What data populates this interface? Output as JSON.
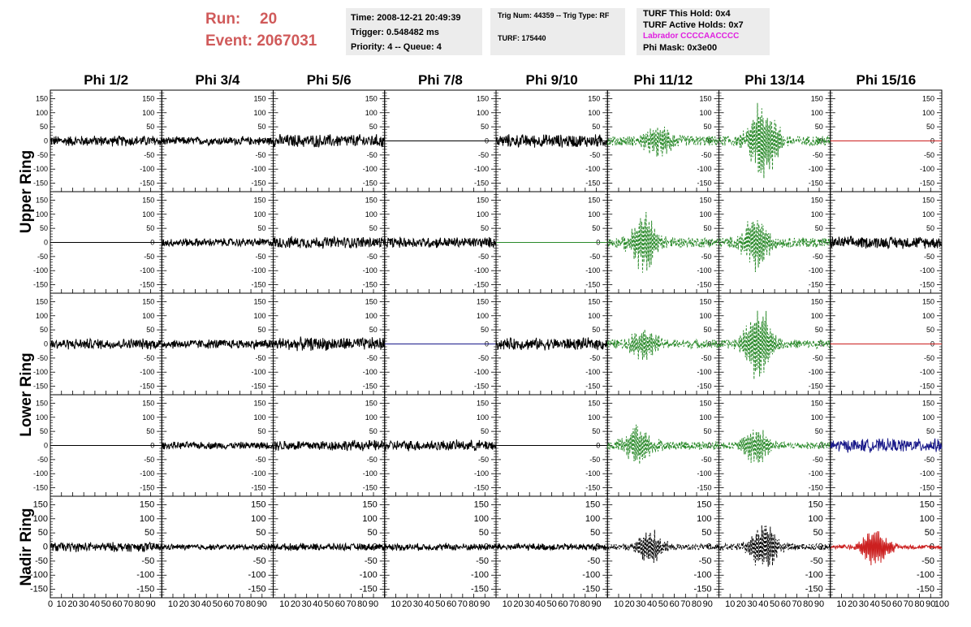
{
  "header": {
    "run_label": "Run:",
    "run_value": "20",
    "event_label": "Event:",
    "event_value": "2067031"
  },
  "info_box_1": {
    "time": "Time: 2008-12-21 20:49:39",
    "trigger": "Trigger: 0.548482 ms",
    "priority": "Priority: 4 -- Queue: 4"
  },
  "info_box_2": {
    "trig": "Trig Num: 44359 -- Trig Type: RF",
    "turf": "TURF: 175440"
  },
  "info_box_3": {
    "hold": "TURF This Hold: 0x4",
    "active": "TURF Active Holds: 0x7",
    "labrador": "Labrador CCCCAACCCC",
    "mask": "Phi Mask: 0x3e00"
  },
  "colors": {
    "header_red": "#d05a5a",
    "magenta": "#e020e0",
    "box_bg": "#ececec",
    "trace_black": "#000000",
    "trace_green": "#2a8a2a",
    "trace_blue": "#1a1a8a",
    "trace_red": "#cc2020"
  },
  "chart_data": {
    "type": "line",
    "columns": [
      "Phi 1/2",
      "Phi 3/4",
      "Phi 5/6",
      "Phi 7/8",
      "Phi 9/10",
      "Phi 11/12",
      "Phi 13/14",
      "Phi 15/16"
    ],
    "rows": [
      "Upper Ring",
      "Lower Ring",
      "Nadir Ring"
    ],
    "row_label_spans": [
      {
        "label": "Upper Ring",
        "panel_rows": [
          0,
          1
        ]
      },
      {
        "label": "Lower Ring",
        "panel_rows": [
          2,
          3
        ]
      },
      {
        "label": "Nadir Ring",
        "panel_rows": [
          4,
          4
        ]
      }
    ],
    "ylim": [
      -180,
      180
    ],
    "xlim": [
      0,
      100
    ],
    "y_ticks": [
      -150,
      -100,
      -50,
      0,
      50,
      100,
      150
    ],
    "x_ticks": [
      0,
      10,
      20,
      30,
      40,
      50,
      60,
      70,
      80,
      90,
      100
    ],
    "x_tick_labels_last_panel": [
      "10",
      "20",
      "30",
      "40",
      "50",
      "60",
      "70",
      "80",
      "90",
      "100"
    ],
    "panels": [
      [
        {
          "style": "noise",
          "amp": 18,
          "color": "black"
        },
        {
          "style": "noise",
          "amp": 14,
          "color": "black"
        },
        {
          "style": "noise",
          "amp": 22,
          "color": "black"
        },
        {
          "style": "flat",
          "amp": 0,
          "color": "black"
        },
        {
          "style": "noise",
          "amp": 22,
          "color": "black"
        },
        {
          "style": "pulse",
          "amp": 25,
          "peak": 45,
          "pulse_amp": 60,
          "color": "green",
          "dashed": true
        },
        {
          "style": "pulse",
          "amp": 25,
          "peak": 40,
          "pulse_amp": 160,
          "color": "green",
          "dashed": true
        },
        {
          "style": "flat",
          "amp": 0,
          "color": "red"
        }
      ],
      [
        {
          "style": "flat",
          "amp": 0,
          "color": "black"
        },
        {
          "style": "noise",
          "amp": 14,
          "color": "black"
        },
        {
          "style": "noise",
          "amp": 20,
          "color": "black"
        },
        {
          "style": "noise",
          "amp": 18,
          "color": "black"
        },
        {
          "style": "flat",
          "amp": 0,
          "color": "green"
        },
        {
          "style": "pulse",
          "amp": 25,
          "peak": 33,
          "pulse_amp": 110,
          "color": "green",
          "dashed": true
        },
        {
          "style": "pulse",
          "amp": 25,
          "peak": 33,
          "pulse_amp": 110,
          "color": "green",
          "dashed": true
        },
        {
          "style": "noise",
          "amp": 20,
          "color": "black"
        }
      ],
      [
        {
          "style": "noise",
          "amp": 18,
          "color": "black"
        },
        {
          "style": "noise",
          "amp": 16,
          "color": "black"
        },
        {
          "style": "noise",
          "amp": 22,
          "color": "black"
        },
        {
          "style": "flat",
          "amp": 0,
          "color": "blue"
        },
        {
          "style": "noise",
          "amp": 20,
          "color": "black"
        },
        {
          "style": "pulse",
          "amp": 22,
          "peak": 33,
          "pulse_amp": 55,
          "color": "green",
          "dashed": true
        },
        {
          "style": "pulse",
          "amp": 22,
          "peak": 35,
          "pulse_amp": 150,
          "color": "green",
          "dashed": true
        },
        {
          "style": "flat",
          "amp": 0,
          "color": "red"
        }
      ],
      [
        {
          "style": "flat",
          "amp": 0,
          "color": "black"
        },
        {
          "style": "noise",
          "amp": 12,
          "color": "black"
        },
        {
          "style": "noise",
          "amp": 18,
          "color": "black"
        },
        {
          "style": "noise",
          "amp": 18,
          "color": "black"
        },
        {
          "style": "flat",
          "amp": 0,
          "color": "black"
        },
        {
          "style": "pulse",
          "amp": 22,
          "peak": 28,
          "pulse_amp": 80,
          "color": "green",
          "dashed": true
        },
        {
          "style": "pulse",
          "amp": 18,
          "peak": 33,
          "pulse_amp": 75,
          "color": "green",
          "dashed": true
        },
        {
          "style": "noise",
          "amp": 22,
          "color": "blue"
        }
      ],
      [
        {
          "style": "noise",
          "amp": 16,
          "color": "black"
        },
        {
          "style": "noise",
          "amp": 10,
          "color": "black"
        },
        {
          "style": "noise",
          "amp": 12,
          "color": "black"
        },
        {
          "style": "noise",
          "amp": 12,
          "color": "black"
        },
        {
          "style": "noise",
          "amp": 12,
          "color": "black"
        },
        {
          "style": "pulse",
          "amp": 14,
          "peak": 38,
          "pulse_amp": 65,
          "color": "black",
          "dashed": true
        },
        {
          "style": "pulse",
          "amp": 16,
          "peak": 40,
          "pulse_amp": 95,
          "color": "black",
          "dashed": true
        },
        {
          "style": "pulse",
          "amp": 10,
          "peak": 40,
          "pulse_amp": 75,
          "color": "red",
          "dashed": false
        }
      ]
    ]
  }
}
